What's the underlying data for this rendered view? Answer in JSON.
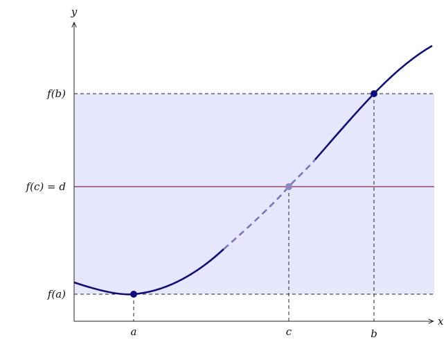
{
  "labels": {
    "x_axis": "x",
    "y_axis": "y",
    "fb": "f(b)",
    "fc": "f(c) = d",
    "fa": "f(a)",
    "a": "a",
    "c": "c",
    "b": "b"
  },
  "colors": {
    "band_fill": "#e6e6fc",
    "curve": "#0d0d80",
    "curve_dashed": "#7777bb",
    "level_line": "#8b2a3a",
    "point_mid": "#8888c4"
  }
}
